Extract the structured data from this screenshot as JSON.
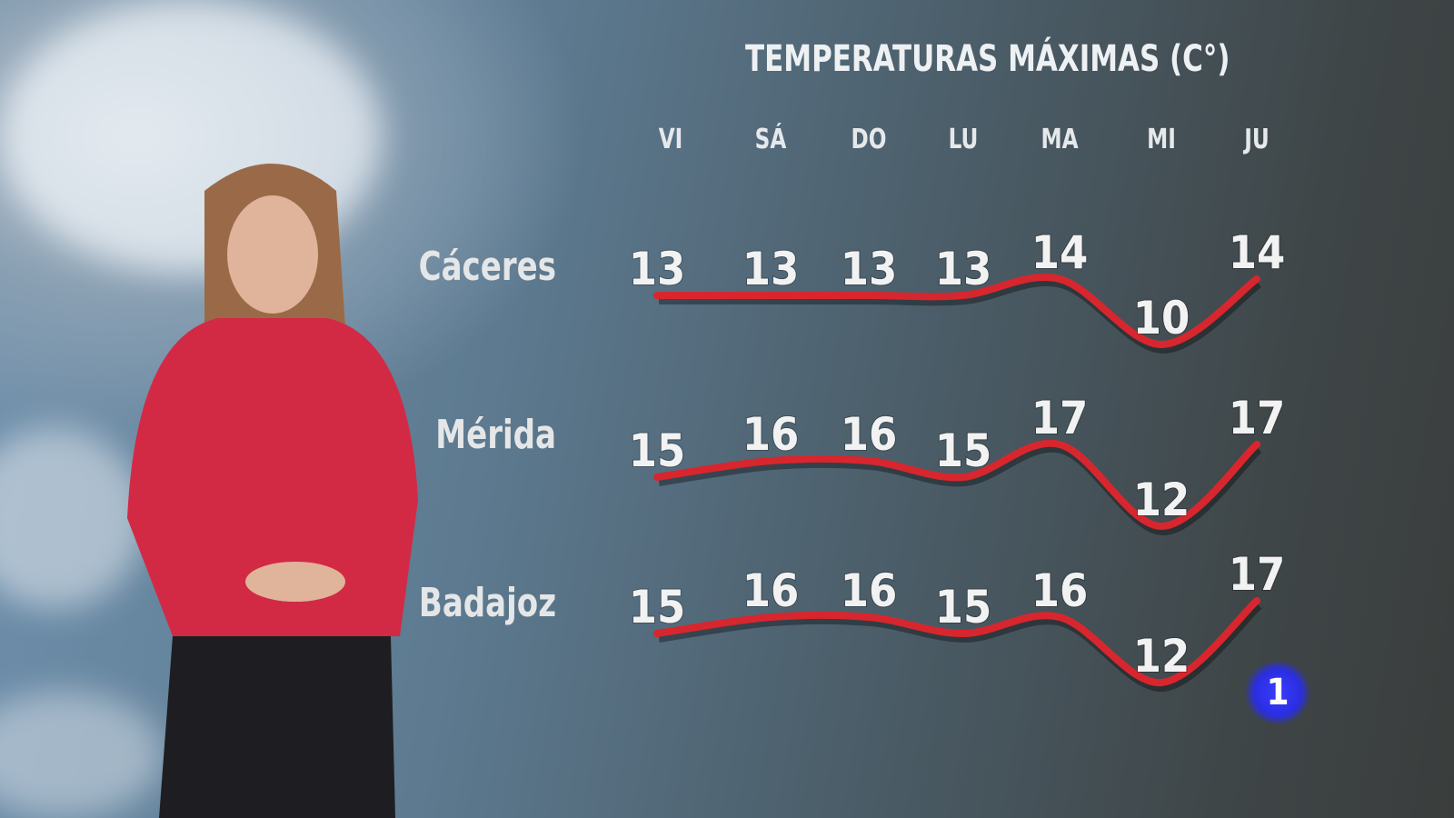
{
  "chart_data": {
    "type": "line",
    "title": "TEMPERATURAS MÁXIMAS (C°)",
    "categories": [
      "VI",
      "SÁ",
      "DO",
      "LU",
      "MA",
      "MI",
      "JU"
    ],
    "series": [
      {
        "name": "Cáceres",
        "values": [
          13,
          13,
          13,
          13,
          14,
          10,
          14
        ]
      },
      {
        "name": "Mérida",
        "values": [
          15,
          16,
          16,
          15,
          17,
          12,
          17
        ]
      },
      {
        "name": "Badajoz",
        "values": [
          15,
          16,
          16,
          15,
          16,
          12,
          17
        ]
      }
    ],
    "line_color": "#d8262e",
    "grid": false
  },
  "logo": {
    "text": "1",
    "color": "#2a2ee0"
  }
}
